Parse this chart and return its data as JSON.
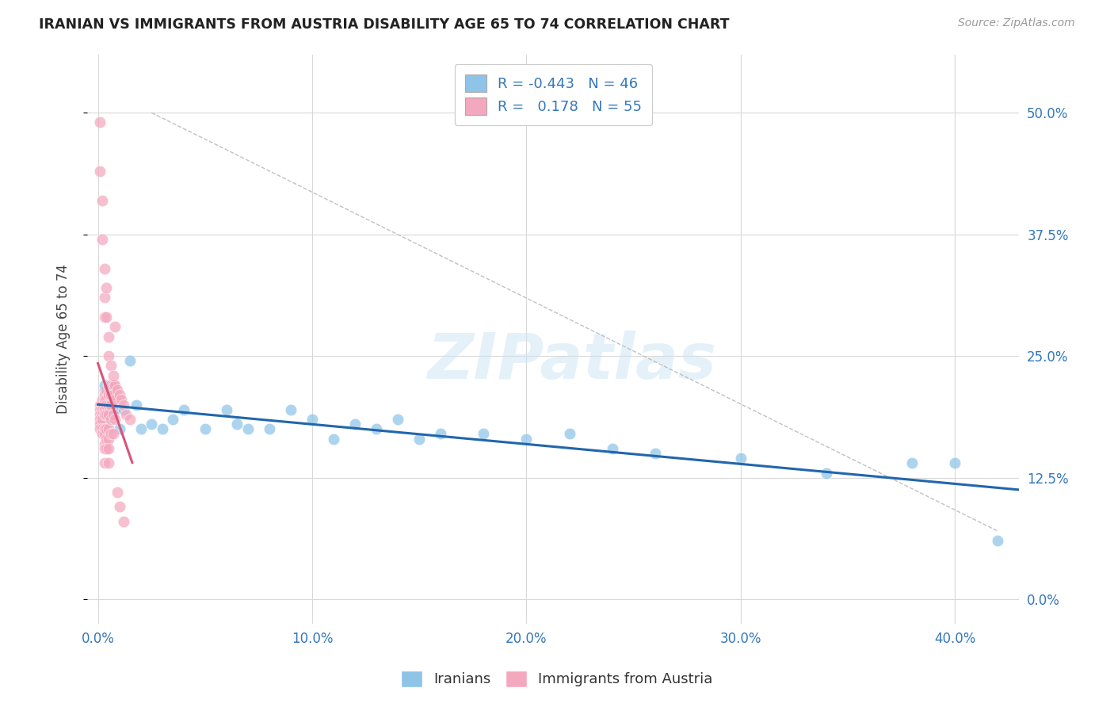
{
  "title": "IRANIAN VS IMMIGRANTS FROM AUSTRIA DISABILITY AGE 65 TO 74 CORRELATION CHART",
  "source": "Source: ZipAtlas.com",
  "ylabel": "Disability Age 65 to 74",
  "xlabel_vals": [
    0.0,
    0.1,
    0.2,
    0.3,
    0.4
  ],
  "xlabel_ticks": [
    "0.0%",
    "10.0%",
    "20.0%",
    "30.0%",
    "40.0%"
  ],
  "ylabel_vals": [
    0.0,
    0.125,
    0.25,
    0.375,
    0.5
  ],
  "ylabel_ticks": [
    "0.0%",
    "12.5%",
    "25.0%",
    "37.5%",
    "50.0%"
  ],
  "xlim": [
    -0.005,
    0.43
  ],
  "ylim": [
    -0.025,
    0.56
  ],
  "legend_label1": "Iranians",
  "legend_label2": "Immigrants from Austria",
  "r1": "-0.443",
  "n1": "46",
  "r2": "0.178",
  "n2": "55",
  "color_blue": "#8ec4e8",
  "color_pink": "#f4a8be",
  "color_blue_line": "#2166ac",
  "color_pink_line": "#d9547a",
  "watermark": "ZIPatlas",
  "iranians_x": [
    0.003,
    0.003,
    0.003,
    0.004,
    0.004,
    0.004,
    0.005,
    0.005,
    0.005,
    0.006,
    0.006,
    0.007,
    0.007,
    0.008,
    0.01,
    0.012,
    0.015,
    0.018,
    0.02,
    0.025,
    0.03,
    0.035,
    0.04,
    0.05,
    0.06,
    0.065,
    0.07,
    0.08,
    0.09,
    0.1,
    0.11,
    0.12,
    0.13,
    0.14,
    0.15,
    0.16,
    0.18,
    0.2,
    0.22,
    0.24,
    0.26,
    0.3,
    0.34,
    0.38,
    0.4,
    0.42
  ],
  "iranians_y": [
    0.215,
    0.22,
    0.195,
    0.2,
    0.185,
    0.21,
    0.215,
    0.205,
    0.19,
    0.2,
    0.195,
    0.2,
    0.19,
    0.195,
    0.175,
    0.195,
    0.245,
    0.2,
    0.175,
    0.18,
    0.175,
    0.185,
    0.195,
    0.175,
    0.195,
    0.18,
    0.175,
    0.175,
    0.195,
    0.185,
    0.165,
    0.18,
    0.175,
    0.185,
    0.165,
    0.17,
    0.17,
    0.165,
    0.17,
    0.155,
    0.15,
    0.145,
    0.13,
    0.14,
    0.14,
    0.06
  ],
  "austria_x": [
    0.001,
    0.001,
    0.001,
    0.001,
    0.001,
    0.001,
    0.002,
    0.002,
    0.002,
    0.002,
    0.002,
    0.002,
    0.002,
    0.003,
    0.003,
    0.003,
    0.003,
    0.003,
    0.003,
    0.003,
    0.003,
    0.003,
    0.004,
    0.004,
    0.004,
    0.004,
    0.004,
    0.004,
    0.004,
    0.005,
    0.005,
    0.005,
    0.005,
    0.005,
    0.005,
    0.005,
    0.005,
    0.006,
    0.006,
    0.006,
    0.006,
    0.006,
    0.007,
    0.007,
    0.007,
    0.007,
    0.008,
    0.008,
    0.008,
    0.009,
    0.01,
    0.011,
    0.012,
    0.013,
    0.015
  ],
  "austria_y": [
    0.2,
    0.195,
    0.19,
    0.185,
    0.18,
    0.175,
    0.205,
    0.2,
    0.195,
    0.19,
    0.185,
    0.175,
    0.17,
    0.21,
    0.205,
    0.195,
    0.19,
    0.175,
    0.17,
    0.16,
    0.155,
    0.14,
    0.215,
    0.205,
    0.2,
    0.19,
    0.175,
    0.165,
    0.155,
    0.22,
    0.21,
    0.2,
    0.19,
    0.175,
    0.165,
    0.155,
    0.14,
    0.22,
    0.21,
    0.2,
    0.185,
    0.17,
    0.22,
    0.21,
    0.19,
    0.17,
    0.22,
    0.205,
    0.185,
    0.215,
    0.21,
    0.205,
    0.2,
    0.19,
    0.185
  ],
  "austria_high_x": [
    0.001,
    0.001,
    0.002,
    0.002,
    0.003,
    0.003,
    0.003,
    0.004,
    0.004,
    0.005,
    0.005,
    0.006,
    0.007,
    0.008,
    0.009,
    0.01,
    0.012
  ],
  "austria_high_y": [
    0.49,
    0.44,
    0.41,
    0.37,
    0.34,
    0.31,
    0.29,
    0.32,
    0.29,
    0.27,
    0.25,
    0.24,
    0.23,
    0.28,
    0.11,
    0.095,
    0.08
  ]
}
